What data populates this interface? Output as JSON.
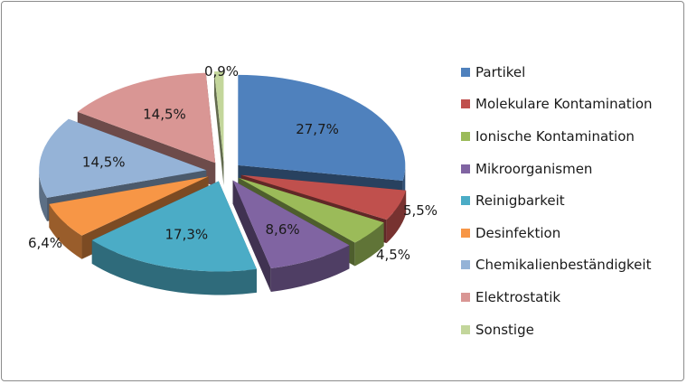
{
  "chart_data": {
    "type": "pie",
    "title": "",
    "slices": [
      {
        "name": "Partikel",
        "value": 27.7,
        "label": "27,7%",
        "color": "#4F81BD"
      },
      {
        "name": "Molekulare Kontamination",
        "value": 5.5,
        "label": "5,5%",
        "color": "#C0504D"
      },
      {
        "name": "Ionische Kontamination",
        "value": 4.5,
        "label": "4,5%",
        "color": "#9BBB59"
      },
      {
        "name": "Mikroorganismen",
        "value": 8.6,
        "label": "8,6%",
        "color": "#8064A2"
      },
      {
        "name": "Reinigbarkeit",
        "value": 17.3,
        "label": "17,3%",
        "color": "#4BACC6"
      },
      {
        "name": "Desinfektion",
        "value": 6.4,
        "label": "6,4%",
        "color": "#F79646"
      },
      {
        "name": "Chemikalienbeständigkeit",
        "value": 14.5,
        "label": "14,5%",
        "color": "#95B3D7"
      },
      {
        "name": "Elektrostatik",
        "value": 14.5,
        "label": "14,5%",
        "color": "#D99694"
      },
      {
        "name": "Sonstige",
        "value": 0.9,
        "label": "0,9%",
        "color": "#C3D69B"
      }
    ],
    "legend_position": "right",
    "style": "exploded-3d"
  }
}
